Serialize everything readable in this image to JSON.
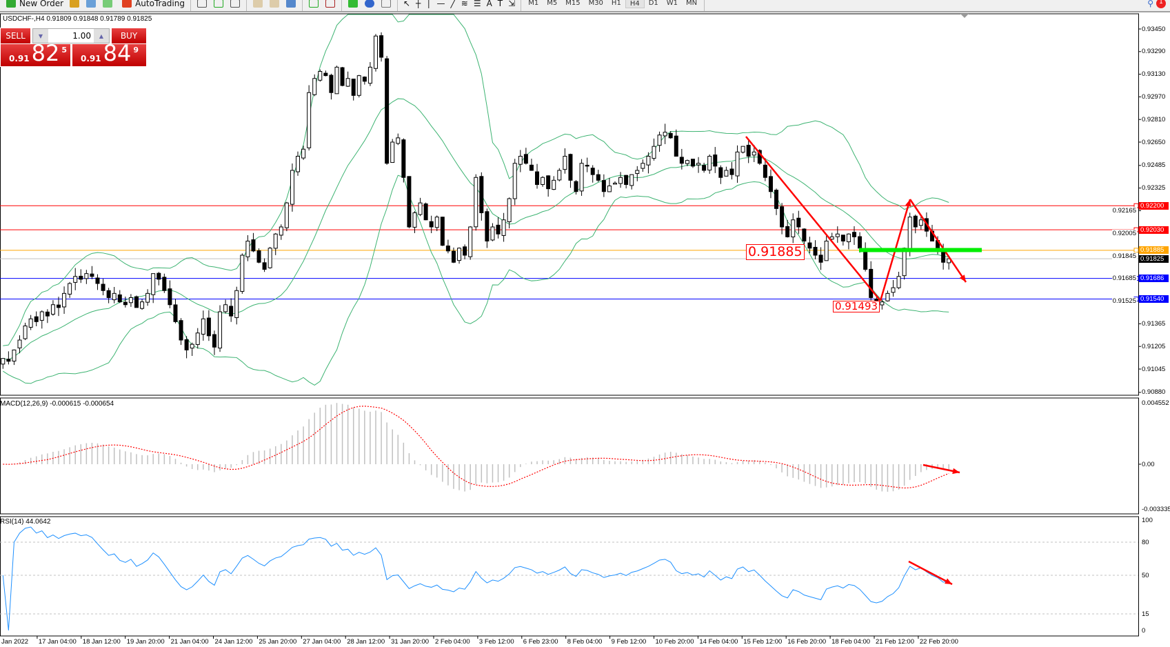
{
  "toolbar": {
    "new_order": "New Order",
    "autotrading": "AutoTrading",
    "timeframes": [
      "M1",
      "M5",
      "M15",
      "M30",
      "H1",
      "H4",
      "D1",
      "W1",
      "MN"
    ],
    "active_timeframe": "H4",
    "notification_count": "1"
  },
  "chart": {
    "title": "USDCHF-,H4  0.91809 0.91848 0.91789 0.91825",
    "symbol": "USDCHF-",
    "timeframe": "H4"
  },
  "trade_panel": {
    "sell_label": "SELL",
    "buy_label": "BUY",
    "lot": "1.00",
    "sell_price": {
      "big": "0.91",
      "main": "82",
      "pip": "5"
    },
    "buy_price": {
      "big": "0.91",
      "main": "84",
      "pip": "9"
    }
  },
  "price_axis": [
    "0.93450",
    "0.93290",
    "0.93130",
    "0.92970",
    "0.92810",
    "0.92650",
    "0.92485",
    "0.92325",
    "0.92165",
    "0.92005",
    "0.91845",
    "0.91685",
    "0.91525",
    "0.91365",
    "0.91205",
    "0.91045",
    "0.90880"
  ],
  "hlines": [
    {
      "price": "0.92200",
      "color": "#ff0000"
    },
    {
      "price": "0.92030",
      "color": "#ff0000"
    },
    {
      "price": "0.91885",
      "color": "#ffa500"
    },
    {
      "price": "0.91825",
      "color": "#000000",
      "line": "#c0c0c0"
    },
    {
      "price": "0.91686",
      "color": "#0000ff"
    },
    {
      "price": "0.91540",
      "color": "#0000ff"
    }
  ],
  "annotations": {
    "level_text_1": "0.91885",
    "level_text_2": "0.91493"
  },
  "macd": {
    "label": "MACD(12,26,9) -0.000615 -0.000654",
    "axis": [
      "0.004552",
      "0.00",
      "-0.003335"
    ],
    "max": 0.004552,
    "min": -0.003335
  },
  "rsi": {
    "label": "RSI(14) 44.0642",
    "axis": [
      "100",
      "80",
      "50",
      "15",
      "0"
    ],
    "levels": [
      80,
      50,
      15
    ]
  },
  "time_axis": [
    "Jan 2022",
    "17 Jan 04:00",
    "18 Jan 12:00",
    "19 Jan 20:00",
    "21 Jan 04:00",
    "24 Jan 12:00",
    "25 Jan 20:00",
    "27 Jan 04:00",
    "28 Jan 12:00",
    "31 Jan 20:00",
    "2 Feb 04:00",
    "3 Feb 12:00",
    "6 Feb 23:00",
    "8 Feb 04:00",
    "9 Feb 12:00",
    "10 Feb 20:00",
    "14 Feb 04:00",
    "15 Feb 12:00",
    "16 Feb 20:00",
    "18 Feb 04:00",
    "21 Feb 12:00",
    "22 Feb 20:00"
  ],
  "colors": {
    "bollinger": "#3cb371",
    "rsi": "#1e90ff",
    "macd_hist": "#c0c0c0",
    "macd_signal": "#ff0000",
    "annotation": "#ff0000",
    "green_level": "#00ee00"
  },
  "chart_data": {
    "type": "candlestick",
    "price_range": [
      0.9088,
      0.9345
    ],
    "closes": [
      0.9112,
      0.911,
      0.9118,
      0.9125,
      0.9135,
      0.914,
      0.9138,
      0.9145,
      0.9142,
      0.915,
      0.9148,
      0.9158,
      0.9165,
      0.917,
      0.9168,
      0.9172,
      0.917,
      0.9165,
      0.916,
      0.9155,
      0.9158,
      0.9152,
      0.915,
      0.9155,
      0.9148,
      0.9152,
      0.9158,
      0.9172,
      0.9168,
      0.916,
      0.915,
      0.9138,
      0.9125,
      0.9118,
      0.9122,
      0.913,
      0.914,
      0.9128,
      0.912,
      0.9145,
      0.915,
      0.9142,
      0.916,
      0.9185,
      0.9195,
      0.9188,
      0.918,
      0.9175,
      0.919,
      0.92,
      0.9205,
      0.9222,
      0.9245,
      0.9255,
      0.926,
      0.93,
      0.931,
      0.9315,
      0.9312,
      0.93,
      0.9318,
      0.9305,
      0.931,
      0.9298,
      0.9312,
      0.9308,
      0.9318,
      0.934,
      0.9325,
      0.925,
      0.9265,
      0.9268,
      0.924,
      0.9205,
      0.9215,
      0.9222,
      0.921,
      0.9205,
      0.9212,
      0.9192,
      0.9188,
      0.918,
      0.919,
      0.9185,
      0.9205,
      0.924,
      0.9215,
      0.9195,
      0.9205,
      0.92,
      0.921,
      0.9225,
      0.925,
      0.9255,
      0.925,
      0.9245,
      0.9235,
      0.924,
      0.9232,
      0.9238,
      0.9245,
      0.9255,
      0.9238,
      0.923,
      0.925,
      0.9248,
      0.9242,
      0.9238,
      0.923,
      0.9234,
      0.9236,
      0.924,
      0.9235,
      0.9242,
      0.9245,
      0.925,
      0.9255,
      0.9262,
      0.927,
      0.9272,
      0.9268,
      0.9255,
      0.925,
      0.9252,
      0.9248,
      0.925,
      0.9245,
      0.9255,
      0.9248,
      0.924,
      0.9245,
      0.9242,
      0.9258,
      0.9262,
      0.9255,
      0.9258,
      0.925,
      0.924,
      0.923,
      0.9218,
      0.9205,
      0.9198,
      0.921,
      0.9205,
      0.9195,
      0.919,
      0.9185,
      0.918,
      0.9195,
      0.9198,
      0.92,
      0.9195,
      0.92,
      0.9198,
      0.919,
      0.9175,
      0.9155,
      0.915,
      0.9152,
      0.9158,
      0.9162,
      0.917,
      0.919,
      0.9212,
      0.9205,
      0.921,
      0.9202,
      0.9195,
      0.919,
      0.918,
      0.91825
    ]
  }
}
